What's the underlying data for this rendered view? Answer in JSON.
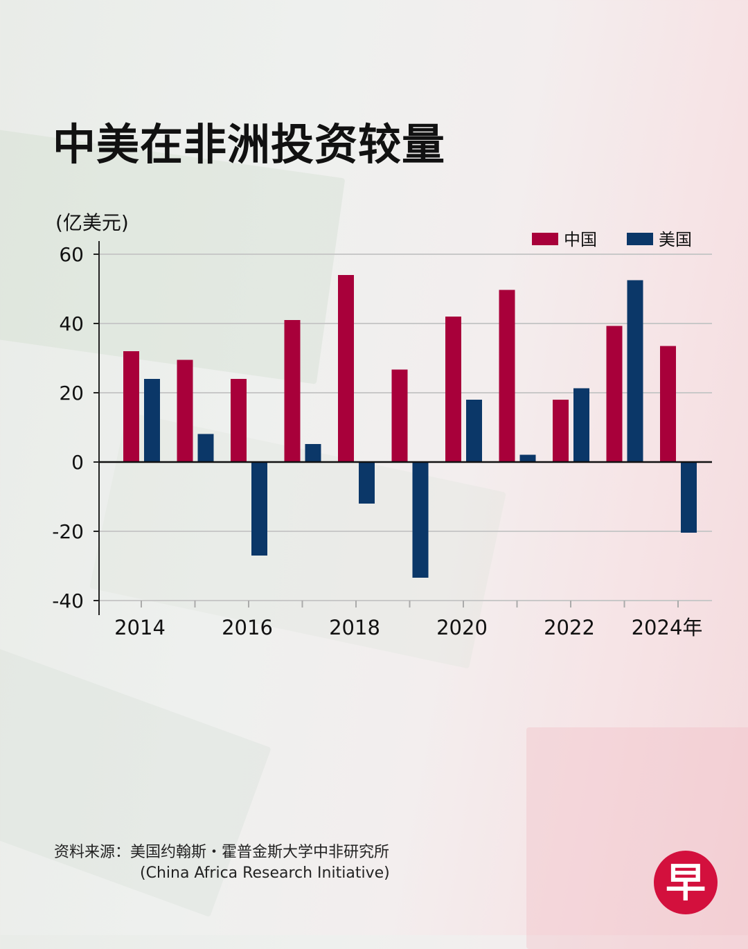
{
  "title": "中美在非洲投资较量",
  "unit_label": "(亿美元)",
  "source": {
    "label": "资料来源：美国约翰斯・霍普金斯大学中非研究所",
    "english": "(China Africa Research Initiative)"
  },
  "logo": "早",
  "colors": {
    "china": "#a8003a",
    "usa": "#0b3768"
  },
  "chart_data": {
    "type": "bar",
    "title": "中美在非洲投资较量",
    "ylabel": "(亿美元)",
    "categories": [
      "2014",
      "2015",
      "2016",
      "2017",
      "2018",
      "2019",
      "2020",
      "2021",
      "2022",
      "2023",
      "2024"
    ],
    "x_tick_labels": [
      "2014",
      "",
      "2016",
      "",
      "2018",
      "",
      "2020",
      "",
      "2022",
      "",
      "2024年"
    ],
    "series": [
      {
        "name": "中国",
        "values": [
          32,
          29.5,
          24,
          41,
          54,
          26.7,
          42,
          49.7,
          18,
          39.3,
          33.5
        ]
      },
      {
        "name": "美国",
        "values": [
          24,
          8.1,
          -27,
          5.2,
          -12,
          -33.4,
          18,
          2.1,
          21.3,
          52.5,
          -20.4
        ]
      }
    ],
    "ylim": [
      -40,
      60
    ],
    "yticks": [
      60,
      40,
      20,
      0,
      -20,
      -40
    ],
    "grid": true,
    "legend": "top-right"
  }
}
